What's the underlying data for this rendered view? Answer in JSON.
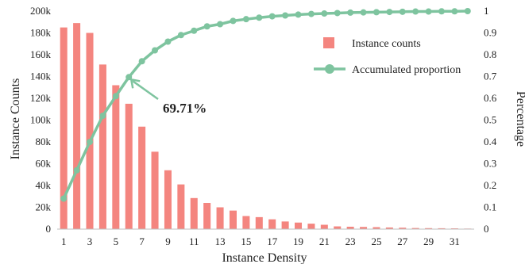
{
  "chart_data": {
    "type": "bar+line",
    "xlabel": "Instance Density",
    "ylabel_left": "Instance Counts",
    "ylabel_right": "Percentage",
    "x": [
      1,
      2,
      3,
      4,
      5,
      6,
      7,
      8,
      9,
      10,
      11,
      12,
      13,
      14,
      15,
      16,
      17,
      18,
      19,
      20,
      21,
      22,
      23,
      24,
      25,
      26,
      27,
      28,
      29,
      30,
      31,
      32
    ],
    "x_tick_labels": [
      "1",
      "3",
      "5",
      "7",
      "9",
      "11",
      "13",
      "15",
      "17",
      "19",
      "21",
      "23",
      "25",
      "27",
      "29",
      "31"
    ],
    "x_tick_values": [
      1,
      3,
      5,
      7,
      9,
      11,
      13,
      15,
      17,
      19,
      21,
      23,
      25,
      27,
      29,
      31
    ],
    "ylim_left": [
      0,
      200000
    ],
    "y_left_ticks": [
      0,
      20000,
      40000,
      60000,
      80000,
      100000,
      120000,
      140000,
      160000,
      180000,
      200000
    ],
    "y_left_tick_labels": [
      "0",
      "20k",
      "40k",
      "60k",
      "80k",
      "100k",
      "120k",
      "140k",
      "160k",
      "180k",
      "200k"
    ],
    "ylim_right": [
      0,
      1
    ],
    "y_right_ticks": [
      0,
      0.1,
      0.2,
      0.3,
      0.4,
      0.5,
      0.6,
      0.7,
      0.8,
      0.9,
      1
    ],
    "y_right_tick_labels": [
      "0",
      "0.1",
      "0.2",
      "0.3",
      "0.4",
      "0.5",
      "0.6",
      "0.7",
      "0.8",
      "0.9",
      "1"
    ],
    "grid": false,
    "legend_position": "top-right",
    "series": [
      {
        "name": "Instance counts",
        "kind": "bar",
        "axis": "left",
        "color": "#f4857f",
        "values": [
          185000,
          189000,
          180000,
          151000,
          132000,
          115000,
          94000,
          71000,
          54000,
          41000,
          28500,
          24000,
          20000,
          17000,
          12000,
          11000,
          9000,
          7000,
          6000,
          5000,
          4000,
          2500,
          2200,
          2000,
          1800,
          1500,
          1300,
          1000,
          900,
          800,
          700,
          500
        ]
      },
      {
        "name": "Accumulated proportion",
        "kind": "line",
        "axis": "right",
        "color": "#7ec49f",
        "values": [
          0.14,
          0.27,
          0.4,
          0.52,
          0.61,
          0.6971,
          0.77,
          0.82,
          0.86,
          0.89,
          0.91,
          0.93,
          0.94,
          0.955,
          0.963,
          0.97,
          0.976,
          0.98,
          0.984,
          0.987,
          0.989,
          0.991,
          0.993,
          0.994,
          0.995,
          0.996,
          0.997,
          0.998,
          0.998,
          0.999,
          0.999,
          1.0
        ]
      }
    ],
    "annotation": {
      "text": "69.71%",
      "x": 6,
      "y": 0.6971
    }
  }
}
